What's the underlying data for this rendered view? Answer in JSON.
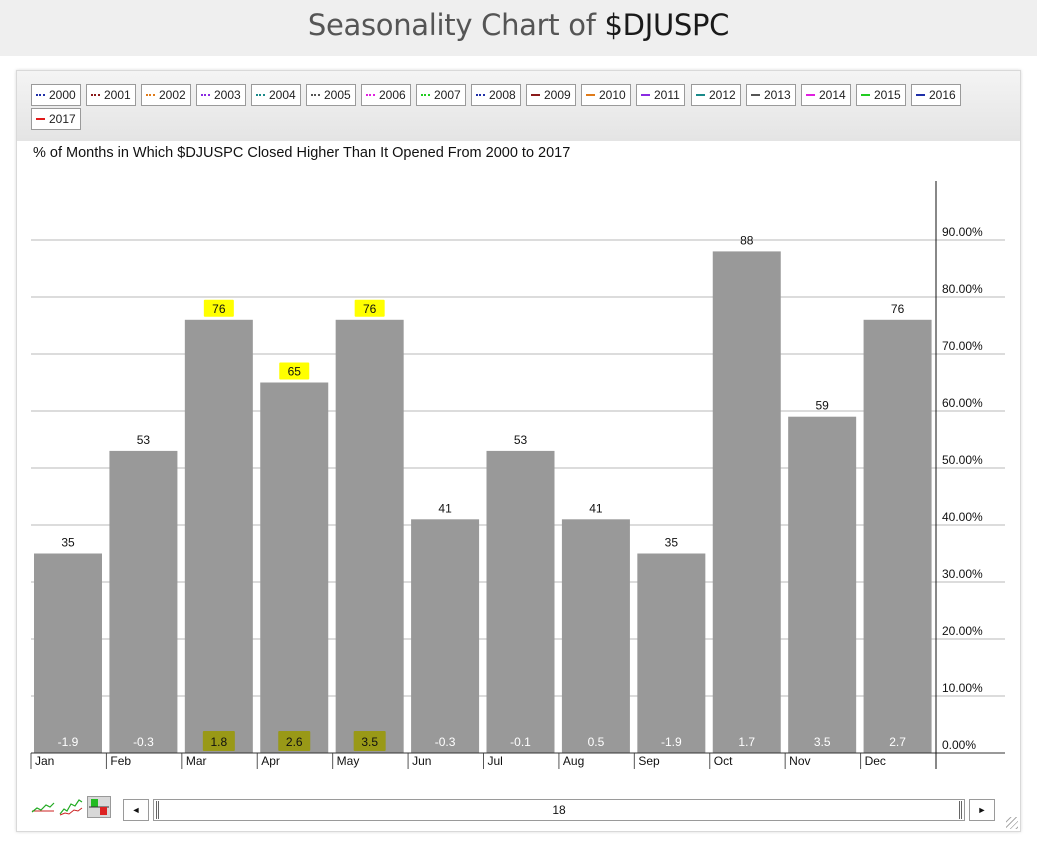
{
  "page": {
    "title_prefix": "Seasonality Chart of ",
    "title_ticker": "$DJUSPC"
  },
  "legend": [
    {
      "label": "2000",
      "color": "#1f2fa8",
      "style": "dotted"
    },
    {
      "label": "2001",
      "color": "#8b1a1a",
      "style": "dotted"
    },
    {
      "label": "2002",
      "color": "#e07b1a",
      "style": "dotted"
    },
    {
      "label": "2003",
      "color": "#8a2be2",
      "style": "dotted"
    },
    {
      "label": "2004",
      "color": "#1a8a8a",
      "style": "dotted"
    },
    {
      "label": "2005",
      "color": "#555555",
      "style": "dotted"
    },
    {
      "label": "2006",
      "color": "#e020e0",
      "style": "dotted"
    },
    {
      "label": "2007",
      "color": "#22cc22",
      "style": "dotted"
    },
    {
      "label": "2008",
      "color": "#1f2fa8",
      "style": "dotted"
    },
    {
      "label": "2009",
      "color": "#8b1a1a",
      "style": "solid"
    },
    {
      "label": "2010",
      "color": "#e07b1a",
      "style": "solid"
    },
    {
      "label": "2011",
      "color": "#8a2be2",
      "style": "solid"
    },
    {
      "label": "2012",
      "color": "#1a8a8a",
      "style": "solid"
    },
    {
      "label": "2013",
      "color": "#555555",
      "style": "solid"
    },
    {
      "label": "2014",
      "color": "#e020e0",
      "style": "solid"
    },
    {
      "label": "2015",
      "color": "#22cc22",
      "style": "solid"
    },
    {
      "label": "2016",
      "color": "#1f2fa8",
      "style": "solid"
    },
    {
      "label": "2017",
      "color": "#e01a1a",
      "style": "solid"
    }
  ],
  "chart_data": {
    "type": "bar",
    "title": "% of Months in Which $DJUSPC Closed Higher Than It Opened From 2000 to 2017",
    "categories": [
      "Jan",
      "Feb",
      "Mar",
      "Apr",
      "May",
      "Jun",
      "Jul",
      "Aug",
      "Sep",
      "Oct",
      "Nov",
      "Dec"
    ],
    "values": [
      35,
      53,
      76,
      65,
      76,
      41,
      53,
      41,
      35,
      88,
      59,
      76
    ],
    "value_labels": [
      "35",
      "53",
      "76",
      "65",
      "76",
      "41",
      "53",
      "41",
      "35",
      "88",
      "59",
      "76"
    ],
    "avg_returns": [
      "-1.9",
      "-0.3",
      "1.8",
      "2.6",
      "3.5",
      "-0.3",
      "-0.1",
      "0.5",
      "-1.9",
      "1.7",
      "3.5",
      "2.7"
    ],
    "highlighted": [
      false,
      false,
      true,
      true,
      true,
      false,
      false,
      false,
      false,
      false,
      false,
      false
    ],
    "y_ticks": [
      "0.00%",
      "10.00%",
      "20.00%",
      "30.00%",
      "40.00%",
      "50.00%",
      "60.00%",
      "70.00%",
      "80.00%",
      "90.00%"
    ],
    "ylim": [
      0,
      100
    ],
    "y_axis_side": "right",
    "grid": true,
    "bar_color": "#999999",
    "highlight_color": "#ffff00"
  },
  "controls": {
    "scroll_left": "◄",
    "scroll_right": "►",
    "period_value": "18"
  }
}
